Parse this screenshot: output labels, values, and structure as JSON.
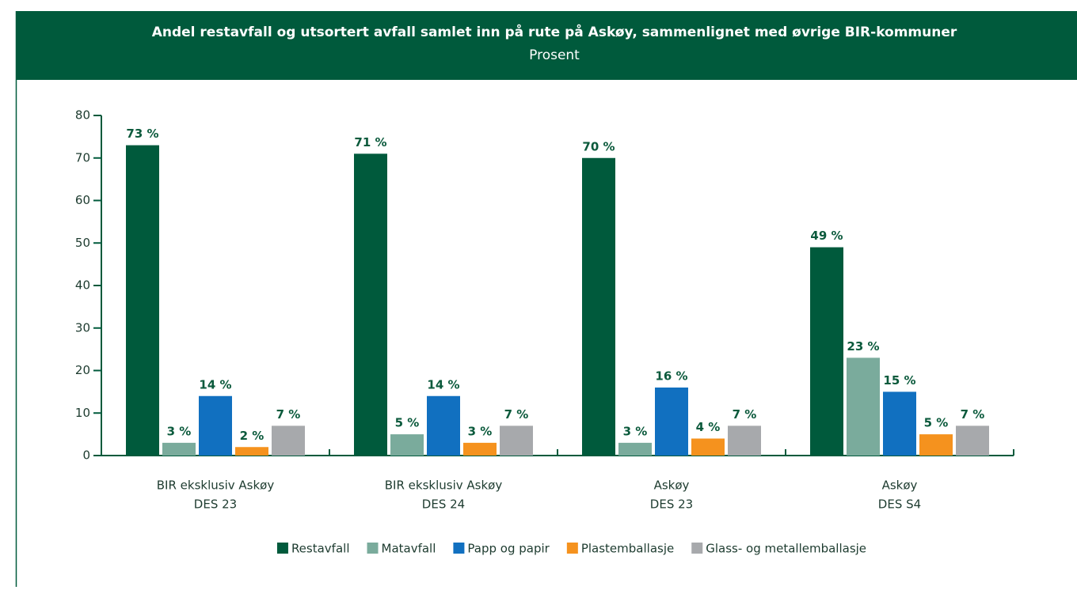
{
  "chart_data": {
    "type": "bar",
    "title": "Andel restavfall og utsortert avfall samlet inn på rute på Askøy, sammenlignet med øvrige BIR-kommuner",
    "subtitle": "Prosent",
    "categories": [
      [
        "BIR eksklusiv Askøy",
        "DES 23"
      ],
      [
        "BIR eksklusiv Askøy",
        "DES 24"
      ],
      [
        "Askøy",
        "DES 23"
      ],
      [
        "Askøy",
        "DES S4"
      ]
    ],
    "ylim": [
      0,
      80
    ],
    "yticks": [
      0,
      10,
      20,
      30,
      40,
      50,
      60,
      70,
      80
    ],
    "legend": "bottom",
    "series": [
      {
        "name": "Restavfall",
        "color": "#005a3c",
        "values": [
          73,
          71,
          70,
          49
        ],
        "value_labels": [
          "73 %",
          "71 %",
          "70 %",
          "49 %"
        ]
      },
      {
        "name": "Matavfall",
        "color": "#7aab9c",
        "values": [
          3,
          5,
          3,
          23
        ],
        "value_labels": [
          "3 %",
          "5 %",
          "3 %",
          "23 %"
        ]
      },
      {
        "name": "Papp og papir",
        "color": "#1170c0",
        "values": [
          14,
          14,
          16,
          15
        ],
        "value_labels": [
          "14 %",
          "14 %",
          "16 %",
          "15 %"
        ]
      },
      {
        "name": "Plastemballasje",
        "color": "#f5921e",
        "values": [
          2,
          3,
          4,
          5
        ],
        "value_labels": [
          "2 %",
          "3 %",
          "4 %",
          "5 %"
        ]
      },
      {
        "name": "Glass- og metallemballasje",
        "color": "#a7a9ac",
        "values": [
          7,
          7,
          7,
          7
        ],
        "value_labels": [
          "7 %",
          "7 %",
          "7 %",
          "7 %"
        ]
      }
    ]
  }
}
